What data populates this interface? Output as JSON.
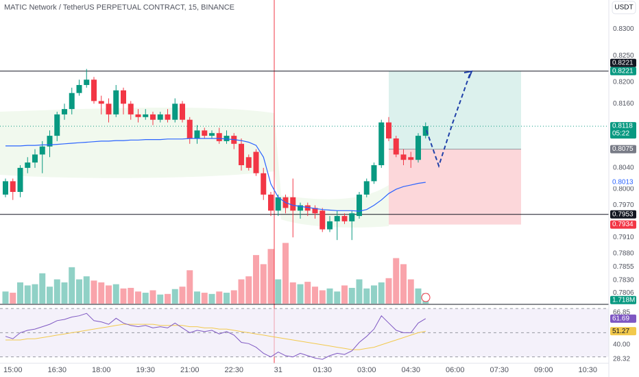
{
  "chart_data": {
    "type": "candlestick",
    "title": "MATIC Network / TetherUS PERPETUAL CONTRACT, 15, BINANCE",
    "currency": "USDT",
    "up_color": "#089981",
    "down_color": "#f23645",
    "x": [
      "14:45",
      "15:00",
      "15:15",
      "15:30",
      "15:45",
      "16:00",
      "16:15",
      "16:30",
      "16:45",
      "17:00",
      "17:15",
      "17:30",
      "17:45",
      "18:00",
      "18:15",
      "18:30",
      "18:45",
      "19:00",
      "19:15",
      "19:30",
      "19:45",
      "20:00",
      "20:15",
      "20:30",
      "20:45",
      "21:00",
      "21:15",
      "21:30",
      "21:45",
      "22:00",
      "22:15",
      "22:30",
      "22:45",
      "23:00",
      "23:15",
      "23:30",
      "23:45",
      "00:00",
      "00:15",
      "00:30",
      "00:45",
      "01:00",
      "01:15",
      "01:30",
      "01:45",
      "02:00",
      "02:15",
      "02:30",
      "02:45",
      "03:00",
      "03:15",
      "03:30",
      "03:45",
      "04:00",
      "04:15",
      "04:30",
      "04:45",
      "05:00"
    ],
    "open": [
      0.799,
      0.8015,
      0.7995,
      0.804,
      0.805,
      0.8065,
      0.808,
      0.81,
      0.814,
      0.815,
      0.818,
      0.8195,
      0.8205,
      0.8165,
      0.816,
      0.814,
      0.8185,
      0.816,
      0.814,
      0.8135,
      0.814,
      0.813,
      0.814,
      0.813,
      0.816,
      0.813,
      0.8095,
      0.811,
      0.81,
      0.8105,
      0.809,
      0.81,
      0.8085,
      0.806,
      0.807,
      0.803,
      0.799,
      0.796,
      0.7985,
      0.7985,
      0.796,
      0.797,
      0.7965,
      0.796,
      0.7925,
      0.794,
      0.795,
      0.794,
      0.795,
      0.799,
      0.8015,
      0.8045,
      0.8125,
      0.8095,
      0.8065,
      0.806,
      0.8055,
      0.81
    ],
    "high": [
      0.802,
      0.802,
      0.8045,
      0.806,
      0.8075,
      0.809,
      0.811,
      0.8145,
      0.816,
      0.819,
      0.8205,
      0.8225,
      0.821,
      0.8175,
      0.817,
      0.8195,
      0.819,
      0.8165,
      0.815,
      0.815,
      0.8145,
      0.8145,
      0.815,
      0.817,
      0.8165,
      0.8135,
      0.812,
      0.8115,
      0.811,
      0.8115,
      0.811,
      0.8105,
      0.8095,
      0.8065,
      0.8075,
      0.804,
      0.7995,
      0.799,
      0.799,
      0.802,
      0.7975,
      0.7975,
      0.797,
      0.7965,
      0.795,
      0.796,
      0.7955,
      0.796,
      0.7995,
      0.802,
      0.805,
      0.813,
      0.8135,
      0.81,
      0.8075,
      0.807,
      0.8105,
      0.8125
    ],
    "low": [
      0.7985,
      0.798,
      0.7985,
      0.803,
      0.804,
      0.803,
      0.806,
      0.809,
      0.813,
      0.814,
      0.8175,
      0.819,
      0.816,
      0.814,
      0.8125,
      0.8135,
      0.814,
      0.813,
      0.8125,
      0.813,
      0.812,
      0.8125,
      0.8125,
      0.8125,
      0.8125,
      0.8085,
      0.8085,
      0.8095,
      0.8095,
      0.8085,
      0.8085,
      0.8075,
      0.8035,
      0.8035,
      0.8025,
      0.798,
      0.795,
      0.795,
      0.7955,
      0.791,
      0.7945,
      0.795,
      0.7945,
      0.792,
      0.792,
      0.7905,
      0.7935,
      0.7905,
      0.7945,
      0.7985,
      0.801,
      0.804,
      0.809,
      0.806,
      0.8045,
      0.804,
      0.805,
      0.8095
    ],
    "close": [
      0.8015,
      0.7995,
      0.804,
      0.805,
      0.8065,
      0.808,
      0.81,
      0.814,
      0.815,
      0.818,
      0.8195,
      0.8205,
      0.8165,
      0.816,
      0.814,
      0.8185,
      0.816,
      0.814,
      0.8135,
      0.814,
      0.813,
      0.814,
      0.813,
      0.816,
      0.813,
      0.8095,
      0.811,
      0.81,
      0.8105,
      0.809,
      0.81,
      0.8085,
      0.8045,
      0.804,
      0.803,
      0.799,
      0.796,
      0.7985,
      0.7965,
      0.796,
      0.797,
      0.796,
      0.7955,
      0.7925,
      0.794,
      0.795,
      0.794,
      0.7955,
      0.799,
      0.8015,
      0.8045,
      0.8125,
      0.8095,
      0.8065,
      0.8055,
      0.8055,
      0.81,
      0.8118
    ],
    "countdown": "05:22",
    "ylim": [
      0.7786,
      0.8354
    ],
    "yticks": [
      {
        "value": 0.83,
        "label": "0.8300"
      },
      {
        "value": 0.825,
        "label": "0.8250"
      },
      {
        "value": 0.82,
        "label": "0.8200"
      },
      {
        "value": 0.816,
        "label": "0.8160"
      },
      {
        "value": 0.804,
        "label": "0.8040"
      },
      {
        "value": 0.8,
        "label": "0.8000"
      },
      {
        "value": 0.797,
        "label": "0.7970"
      },
      {
        "value": 0.791,
        "label": "0.7910"
      },
      {
        "value": 0.788,
        "label": "0.7880"
      },
      {
        "value": 0.7855,
        "label": "0.7855"
      },
      {
        "value": 0.783,
        "label": "0.7830"
      },
      {
        "value": 0.7806,
        "label": "0.7806"
      }
    ],
    "xticks": [
      "15:00",
      "16:30",
      "18:00",
      "19:30",
      "21:00",
      "22:30",
      "31",
      "01:30",
      "03:00",
      "04:30",
      "06:00",
      "07:30",
      "09:00",
      "10:30"
    ],
    "ma": {
      "color": "#2962ff",
      "values": [
        0.8081,
        0.8081,
        0.8081,
        0.8082,
        0.8082,
        0.8083,
        0.8083,
        0.8084,
        0.8085,
        0.8086,
        0.8087,
        0.8088,
        0.8089,
        0.809,
        0.809,
        0.8091,
        0.8091,
        0.8092,
        0.8092,
        0.8093,
        0.8093,
        0.8093,
        0.8094,
        0.8094,
        0.8094,
        0.8095,
        0.8095,
        0.8095,
        0.8095,
        0.8095,
        0.8094,
        0.8093,
        0.8091,
        0.8088,
        0.8082,
        0.806,
        0.801,
        0.7985,
        0.7975,
        0.797,
        0.7968,
        0.7966,
        0.7964,
        0.7962,
        0.7961,
        0.796,
        0.796,
        0.796,
        0.7959,
        0.7962,
        0.797,
        0.798,
        0.7992,
        0.8,
        0.8005,
        0.8008,
        0.8011,
        0.8013
      ]
    },
    "hlines": [
      0.8221,
      0.7953
    ],
    "position": {
      "target": 0.8221,
      "entry": 0.8075,
      "stop": 0.7934
    },
    "volume": {
      "values": [
        2,
        1.8,
        3.5,
        3,
        3.2,
        5,
        2.8,
        4,
        3.5,
        6,
        4,
        4.5,
        3.8,
        3.5,
        3,
        3.2,
        2.5,
        2.6,
        2,
        1.8,
        2.2,
        1.5,
        1.6,
        2.4,
        2.8,
        5.5,
        2,
        1.8,
        1.6,
        2,
        1.8,
        2.2,
        4,
        4.5,
        8,
        6.5,
        9,
        4,
        10,
        3.5,
        3.2,
        3.6,
        2.8,
        2.2,
        2.5,
        2,
        3,
        2.6,
        4,
        2.5,
        3,
        3.5,
        4.2,
        7.5,
        6.5,
        4,
        2.5,
        1.718
      ],
      "last_label": "1.718M",
      "ylim": [
        0,
        50
      ]
    },
    "rsi": {
      "color": "#7e57c2",
      "values": [
        47,
        45,
        50,
        52,
        53,
        55,
        57,
        60,
        61,
        63,
        64,
        66,
        60,
        59,
        57,
        62,
        58,
        56,
        55,
        56,
        54,
        55,
        54,
        58,
        54,
        50,
        52,
        51,
        52,
        49,
        51,
        48,
        42,
        41,
        38,
        33,
        30,
        34,
        31,
        30,
        33,
        31,
        29,
        28,
        31,
        33,
        32,
        35,
        42,
        47,
        53,
        64,
        58,
        52,
        50,
        50,
        58,
        61.69
      ]
    },
    "rsi_ma": {
      "color": "#f2c94c",
      "values": [
        44,
        44,
        44,
        45,
        45,
        46,
        47,
        48,
        49,
        50,
        51,
        52,
        53,
        54,
        55,
        56,
        57,
        57,
        57,
        57,
        57,
        56,
        56,
        56,
        56,
        55,
        55,
        54,
        54,
        53,
        53,
        52,
        51,
        50,
        49,
        48,
        47,
        46,
        45,
        44,
        43,
        42,
        41,
        40,
        39,
        38,
        37,
        36,
        36,
        37,
        38,
        40,
        42,
        44,
        46,
        48,
        50,
        51.27
      ]
    },
    "rsi_ylim": [
      24.7,
      71.8
    ],
    "rsi_bands": [
      70,
      50,
      30
    ],
    "rsi_yticks": [
      66.85,
      {
        "value": 40,
        "label": "40.00"
      },
      28.32
    ]
  }
}
